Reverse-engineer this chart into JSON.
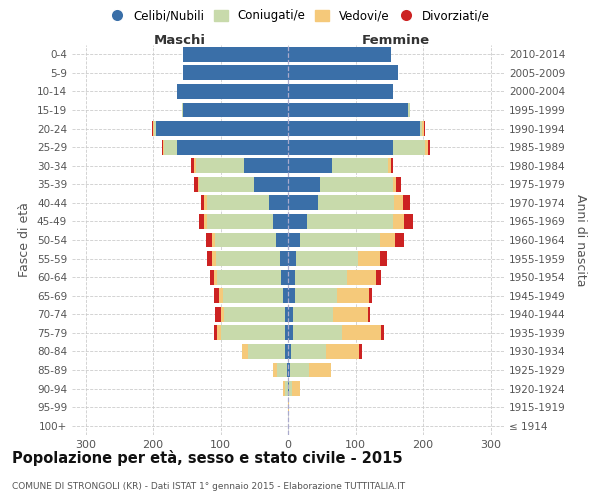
{
  "age_groups": [
    "100+",
    "95-99",
    "90-94",
    "85-89",
    "80-84",
    "75-79",
    "70-74",
    "65-69",
    "60-64",
    "55-59",
    "50-54",
    "45-49",
    "40-44",
    "35-39",
    "30-34",
    "25-29",
    "20-24",
    "15-19",
    "10-14",
    "5-9",
    "0-4"
  ],
  "birth_years": [
    "≤ 1914",
    "1915-1919",
    "1920-1924",
    "1925-1929",
    "1930-1934",
    "1935-1939",
    "1940-1944",
    "1945-1949",
    "1950-1954",
    "1955-1959",
    "1960-1964",
    "1965-1969",
    "1970-1974",
    "1975-1979",
    "1980-1984",
    "1985-1989",
    "1990-1994",
    "1995-1999",
    "2000-2004",
    "2005-2009",
    "2010-2014"
  ],
  "males_celibi": [
    0,
    0,
    0,
    2,
    5,
    5,
    5,
    7,
    10,
    12,
    18,
    22,
    28,
    50,
    65,
    165,
    195,
    155,
    165,
    155,
    155
  ],
  "males_coniugati": [
    0,
    0,
    5,
    15,
    55,
    95,
    90,
    90,
    95,
    95,
    90,
    98,
    92,
    82,
    72,
    18,
    4,
    2,
    0,
    0,
    0
  ],
  "males_vedovi": [
    0,
    0,
    3,
    5,
    8,
    5,
    5,
    5,
    5,
    5,
    5,
    4,
    4,
    2,
    2,
    2,
    1,
    0,
    0,
    0,
    0
  ],
  "males_divorziati": [
    0,
    0,
    0,
    0,
    0,
    5,
    8,
    8,
    5,
    8,
    8,
    8,
    5,
    5,
    5,
    2,
    2,
    0,
    0,
    0,
    0
  ],
  "females_nubili": [
    0,
    0,
    2,
    3,
    5,
    8,
    8,
    10,
    10,
    12,
    18,
    28,
    45,
    48,
    65,
    155,
    195,
    178,
    155,
    163,
    153
  ],
  "females_coniugate": [
    0,
    0,
    4,
    28,
    52,
    72,
    58,
    62,
    78,
    92,
    118,
    128,
    112,
    108,
    83,
    48,
    4,
    2,
    0,
    0,
    0
  ],
  "females_vedove": [
    0,
    2,
    12,
    33,
    48,
    58,
    52,
    48,
    43,
    32,
    23,
    16,
    13,
    4,
    4,
    4,
    2,
    0,
    0,
    0,
    0
  ],
  "females_divorziate": [
    0,
    0,
    0,
    0,
    4,
    4,
    4,
    5,
    7,
    10,
    13,
    13,
    11,
    7,
    4,
    4,
    2,
    0,
    0,
    0,
    0
  ],
  "color_celibi": "#3a6fa8",
  "color_coniugati": "#c8daab",
  "color_vedovi": "#f5c97a",
  "color_divorziati": "#cc2222",
  "title": "Popolazione per età, sesso e stato civile - 2015",
  "subtitle": "COMUNE DI STRONGOLI (KR) - Dati ISTAT 1° gennaio 2015 - Elaborazione TUTTITALIA.IT",
  "ylabel_left": "Fasce di età",
  "ylabel_right": "Anni di nascita",
  "xlabel_maschi": "Maschi",
  "xlabel_femmine": "Femmine",
  "xlim": 320,
  "bg_color": "#ffffff",
  "grid_color": "#cccccc",
  "legend_labels": [
    "Celibi/Nubili",
    "Coniugati/e",
    "Vedovi/e",
    "Divorziati/e"
  ]
}
